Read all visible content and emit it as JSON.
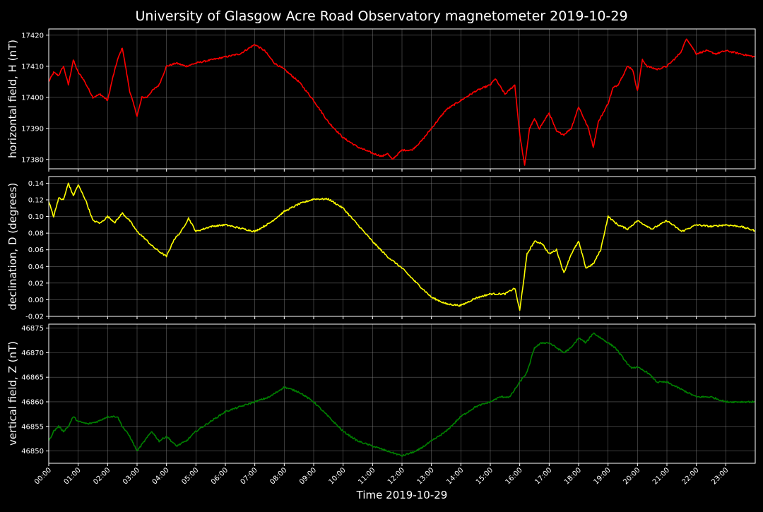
{
  "chart_data": [
    {
      "type": "line",
      "title": "University of Glasgow Acre Road Observatory magnetometer 2019-10-29",
      "xlabel": "",
      "ylabel": "horizontal field, H (nT)",
      "xlim": [
        "00:00",
        "24:00"
      ],
      "ylim": [
        17377,
        17422
      ],
      "yticks": [
        17380,
        17390,
        17400,
        17410,
        17420
      ],
      "grid": true,
      "series": [
        {
          "color": "#ff0000",
          "x": [
            "00:00",
            "00:10",
            "00:20",
            "00:30",
            "00:40",
            "00:50",
            "01:00",
            "01:10",
            "01:20",
            "01:30",
            "01:45",
            "02:00",
            "02:10",
            "02:20",
            "02:30",
            "02:45",
            "03:00",
            "03:10",
            "03:20",
            "03:30",
            "03:45",
            "04:00",
            "04:20",
            "04:40",
            "05:00",
            "05:30",
            "06:00",
            "06:30",
            "06:50",
            "07:00",
            "07:20",
            "07:40",
            "08:00",
            "08:30",
            "09:00",
            "09:30",
            "10:00",
            "10:30",
            "11:00",
            "11:20",
            "11:30",
            "11:40",
            "12:00",
            "12:20",
            "12:40",
            "13:00",
            "13:30",
            "14:00",
            "14:30",
            "15:00",
            "15:10",
            "15:30",
            "15:50",
            "16:00",
            "16:10",
            "16:20",
            "16:30",
            "16:40",
            "17:00",
            "17:15",
            "17:30",
            "17:45",
            "18:00",
            "18:20",
            "18:30",
            "18:40",
            "19:00",
            "19:10",
            "19:20",
            "19:30",
            "19:40",
            "19:50",
            "20:00",
            "20:10",
            "20:20",
            "20:40",
            "21:00",
            "21:20",
            "21:30",
            "21:40",
            "22:00",
            "22:20",
            "22:40",
            "23:00",
            "23:30",
            "23:59"
          ],
          "y": [
            17405,
            17408,
            17407,
            17410,
            17404,
            17412,
            17408,
            17406,
            17403,
            17400,
            17401,
            17399,
            17406,
            17412,
            17416,
            17402,
            17394,
            17400,
            17400,
            17402,
            17404,
            17410,
            17411,
            17410,
            17411,
            17412,
            17413,
            17414,
            17416,
            17417,
            17415,
            17411,
            17409,
            17405,
            17399,
            17392,
            17387,
            17384,
            17382,
            17381,
            17382,
            17380,
            17383,
            17383,
            17386,
            17390,
            17396,
            17399,
            17402,
            17404,
            17406,
            17401,
            17404,
            17388,
            17378,
            17390,
            17393,
            17390,
            17395,
            17389,
            17388,
            17390,
            17397,
            17390,
            17384,
            17392,
            17398,
            17403,
            17404,
            17407,
            17410,
            17409,
            17402,
            17412,
            17410,
            17409,
            17410,
            17413,
            17415,
            17419,
            17414,
            17415,
            17414,
            17415,
            17414,
            17413
          ]
        }
      ]
    },
    {
      "type": "line",
      "title": "",
      "xlabel": "",
      "ylabel": "declination, D (degrees)",
      "xlim": [
        "00:00",
        "24:00"
      ],
      "ylim": [
        -0.02,
        0.148
      ],
      "yticks": [
        -0.02,
        0.0,
        0.02,
        0.04,
        0.06,
        0.08,
        0.1,
        0.12,
        0.14
      ],
      "grid": true,
      "series": [
        {
          "color": "#ffff00",
          "x": [
            "00:00",
            "00:10",
            "00:20",
            "00:30",
            "00:40",
            "00:50",
            "01:00",
            "01:15",
            "01:30",
            "01:45",
            "02:00",
            "02:15",
            "02:30",
            "02:45",
            "03:00",
            "03:15",
            "03:30",
            "03:45",
            "04:00",
            "04:15",
            "04:30",
            "04:45",
            "05:00",
            "05:15",
            "05:30",
            "06:00",
            "06:30",
            "07:00",
            "07:30",
            "08:00",
            "08:30",
            "09:00",
            "09:30",
            "10:00",
            "10:30",
            "11:00",
            "11:30",
            "12:00",
            "12:30",
            "13:00",
            "13:30",
            "14:00",
            "14:30",
            "15:00",
            "15:30",
            "15:50",
            "16:00",
            "16:15",
            "16:30",
            "16:45",
            "17:00",
            "17:15",
            "17:30",
            "17:45",
            "18:00",
            "18:15",
            "18:30",
            "18:45",
            "19:00",
            "19:20",
            "19:40",
            "20:00",
            "20:30",
            "21:00",
            "21:30",
            "22:00",
            "22:30",
            "23:00",
            "23:30",
            "23:59"
          ],
          "y": [
            0.118,
            0.1,
            0.122,
            0.12,
            0.14,
            0.125,
            0.138,
            0.12,
            0.095,
            0.092,
            0.1,
            0.093,
            0.104,
            0.095,
            0.082,
            0.074,
            0.065,
            0.058,
            0.052,
            0.072,
            0.082,
            0.098,
            0.082,
            0.085,
            0.088,
            0.09,
            0.086,
            0.082,
            0.092,
            0.106,
            0.115,
            0.121,
            0.121,
            0.11,
            0.09,
            0.07,
            0.052,
            0.038,
            0.02,
            0.003,
            -0.005,
            -0.007,
            0.002,
            0.007,
            0.007,
            0.014,
            -0.013,
            0.055,
            0.07,
            0.068,
            0.055,
            0.06,
            0.032,
            0.055,
            0.07,
            0.038,
            0.043,
            0.06,
            0.1,
            0.09,
            0.085,
            0.095,
            0.085,
            0.095,
            0.082,
            0.09,
            0.088,
            0.09,
            0.088,
            0.083
          ]
        }
      ]
    },
    {
      "type": "line",
      "title": "",
      "xlabel": "Time 2019-10-29",
      "ylabel": "vertical field, Z (nT)",
      "xlim": [
        "00:00",
        "24:00"
      ],
      "ylim": [
        46847.5,
        46875.8
      ],
      "yticks": [
        46850,
        46855,
        46860,
        46865,
        46870,
        46875
      ],
      "xticks": [
        "00:00",
        "01:00",
        "02:00",
        "03:00",
        "04:00",
        "05:00",
        "06:00",
        "07:00",
        "08:00",
        "09:00",
        "10:00",
        "11:00",
        "12:00",
        "13:00",
        "14:00",
        "15:00",
        "16:00",
        "17:00",
        "18:00",
        "19:00",
        "20:00",
        "21:00",
        "22:00",
        "23:00"
      ],
      "grid": true,
      "series": [
        {
          "color": "#008000",
          "x": [
            "00:00",
            "00:10",
            "00:20",
            "00:30",
            "00:40",
            "00:50",
            "01:00",
            "01:20",
            "01:40",
            "02:00",
            "02:20",
            "02:30",
            "02:45",
            "03:00",
            "03:15",
            "03:30",
            "03:45",
            "04:00",
            "04:20",
            "04:40",
            "05:00",
            "05:30",
            "06:00",
            "06:30",
            "07:00",
            "07:30",
            "08:00",
            "08:30",
            "09:00",
            "09:30",
            "10:00",
            "10:30",
            "11:00",
            "11:30",
            "12:00",
            "12:30",
            "13:00",
            "13:30",
            "14:00",
            "14:30",
            "15:00",
            "15:20",
            "15:40",
            "16:00",
            "16:15",
            "16:30",
            "16:45",
            "17:00",
            "17:15",
            "17:30",
            "17:45",
            "18:00",
            "18:15",
            "18:30",
            "18:45",
            "19:00",
            "19:15",
            "19:30",
            "19:45",
            "20:00",
            "20:20",
            "20:40",
            "21:00",
            "21:20",
            "21:40",
            "22:00",
            "22:30",
            "23:00",
            "23:30",
            "23:59"
          ],
          "y": [
            46852,
            46854,
            46855,
            46854,
            46855,
            46857,
            46856,
            46855.5,
            46856,
            46857,
            46857,
            46855,
            46853,
            46850,
            46852,
            46854,
            46852,
            46853,
            46851,
            46852,
            46854,
            46856,
            46858,
            46859,
            46860,
            46861,
            46863,
            46862,
            46860,
            46857,
            46854,
            46852,
            46851,
            46850,
            46849,
            46850,
            46852,
            46854,
            46857,
            46859,
            46860,
            46861,
            46861,
            46864,
            46866,
            46871,
            46872,
            46872,
            46871,
            46870,
            46871,
            46873,
            46872,
            46874,
            46873,
            46872,
            46871,
            46869,
            46867,
            46867,
            46866,
            46864,
            46864,
            46863,
            46862,
            46861,
            46861,
            46860,
            46860,
            46860
          ]
        }
      ]
    }
  ]
}
